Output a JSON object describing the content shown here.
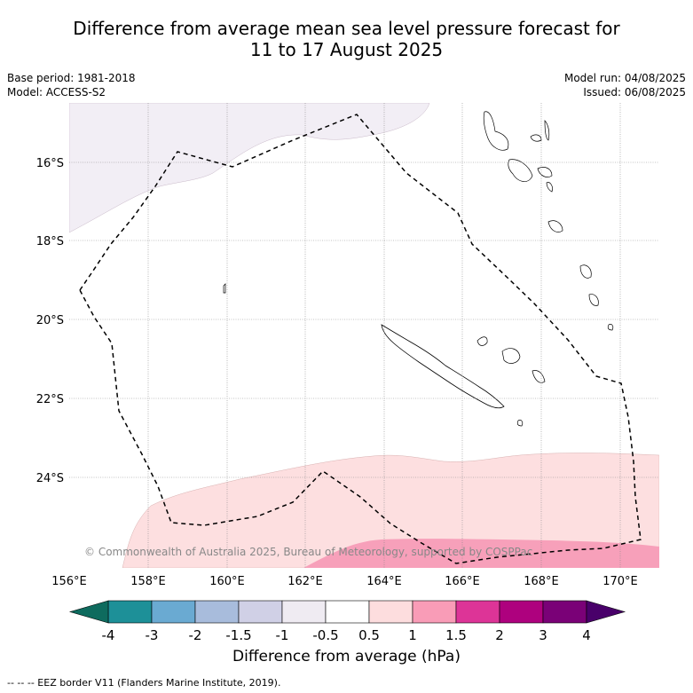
{
  "title": {
    "line1": "Difference from average mean sea level pressure forecast for",
    "line2": "11 to 17 August 2025"
  },
  "meta": {
    "base_period": "Base period: 1981-2018",
    "model": "Model: ACCESS-S2",
    "model_run": "Model run: 04/08/2025",
    "issued": "Issued: 06/08/2025"
  },
  "map": {
    "lon_ticks": [
      "156°E",
      "158°E",
      "160°E",
      "162°E",
      "164°E",
      "166°E",
      "168°E",
      "170°E"
    ],
    "lat_ticks": [
      "16°S",
      "18°S",
      "20°S",
      "22°S",
      "24°S"
    ],
    "copyright": "© Commonwealth of Australia 2025, Bureau of Meteorology, supported by COSPPac"
  },
  "colorbar": {
    "ticks": [
      "-4",
      "-3",
      "-2",
      "-1.5",
      "-1",
      "-0.5",
      "0.5",
      "1",
      "1.5",
      "2",
      "3",
      "4"
    ],
    "colors": [
      "#0e6b5e",
      "#1d9098",
      "#6aaad2",
      "#a8bcdc",
      "#d0d0e6",
      "#efebf2",
      "#ffffff",
      "#fdddde",
      "#f99cb7",
      "#dd3497",
      "#ae017e",
      "#7a0177",
      "#49006a"
    ],
    "label": "Difference from average (hPa)"
  },
  "legend": {
    "eez": "-- -- -- EEZ border V11 (Flanders Marine Institute, 2019)."
  }
}
